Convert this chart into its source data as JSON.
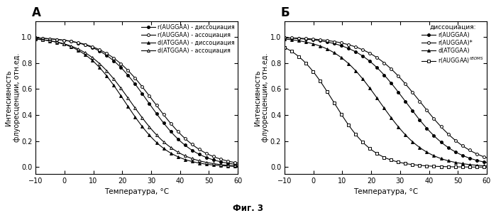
{
  "panel_A_label": "А",
  "panel_B_label": "Б",
  "xlabel": "Температура, °C",
  "ylabel": "Интенсивность\nфлуоресценции, отн.ед.",
  "fig_caption": "Фиг. 3",
  "panelA_legend": [
    "r(AUGGAA) - диссоциация",
    "r(AUGGAA) - ассоциация",
    "d(ATGGAA) - диссоциация",
    "d(ATGGAA) - ассоциация"
  ],
  "panelB_legend_title": "диссоциация:",
  "panelB_legend": [
    "r(AUGGAA)",
    "r(AUGGAA)*",
    "d(ATGGAA)",
    "r(AUGGAA)$^{tBDMS}$"
  ],
  "A_params": [
    {
      "mid": 29.0,
      "slope": 8.0
    },
    {
      "mid": 31.0,
      "slope": 8.5
    },
    {
      "mid": 21.0,
      "slope": 7.5
    },
    {
      "mid": 23.0,
      "slope": 8.0
    }
  ],
  "B_params": [
    {
      "mid": 32.0,
      "slope": 8.5
    },
    {
      "mid": 37.0,
      "slope": 9.0
    },
    {
      "mid": 23.0,
      "slope": 8.0
    },
    {
      "mid": 7.0,
      "slope": 7.0
    }
  ]
}
